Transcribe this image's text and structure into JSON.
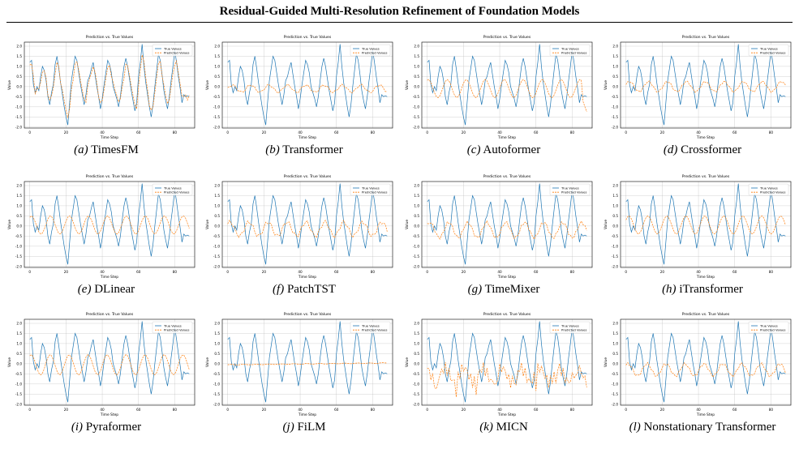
{
  "page": {
    "title": "Residual-Guided Multi-Resolution Refinement of Foundation Models"
  },
  "colors": {
    "true_series": "#1f77b4",
    "pred_series": "#ff7f0e",
    "grid": "#b0b0b0"
  },
  "chart_data": [
    {
      "type": "line",
      "label": "(a)",
      "model": "TimesFM",
      "title": "Prediction vs. True Values",
      "xlabel": "Time Step",
      "ylabel": "Value",
      "xlim": [
        -3,
        91
      ],
      "ylim": [
        -2.05,
        2.2
      ],
      "xticks": [
        0,
        20,
        40,
        60,
        80
      ],
      "yticks": [
        -2.0,
        -1.5,
        -1.0,
        -0.5,
        0.0,
        0.5,
        1.0,
        1.5,
        2.0
      ],
      "legend_position": "top-right",
      "grid": true,
      "series": [
        {
          "name": "True Values",
          "values": []
        },
        {
          "name": "Predicted Values",
          "values": []
        }
      ]
    },
    {
      "type": "line",
      "label": "(b)",
      "model": "Transformer",
      "title": "Prediction vs. True Values",
      "xlabel": "Time Step",
      "ylabel": "Value",
      "xlim": [
        -3,
        91
      ],
      "ylim": [
        -2.05,
        2.2
      ],
      "xticks": [
        0,
        20,
        40,
        60,
        80
      ],
      "yticks": [
        -2.0,
        -1.5,
        -1.0,
        -0.5,
        0.0,
        0.5,
        1.0,
        1.5,
        2.0
      ],
      "legend_position": "top-right",
      "grid": true,
      "series": [
        {
          "name": "True Values",
          "values": []
        },
        {
          "name": "Predicted Values",
          "values": []
        }
      ]
    },
    {
      "type": "line",
      "label": "(c)",
      "model": "Autoformer",
      "title": "Prediction vs. True Values",
      "xlabel": "Time Step",
      "ylabel": "Value",
      "xlim": [
        -3,
        91
      ],
      "ylim": [
        -2.05,
        2.2
      ],
      "xticks": [
        0,
        20,
        40,
        60,
        80
      ],
      "yticks": [
        -2.0,
        -1.5,
        -1.0,
        -0.5,
        0.0,
        0.5,
        1.0,
        1.5,
        2.0
      ],
      "legend_position": "top-right",
      "grid": true,
      "series": [
        {
          "name": "True Values",
          "values": []
        },
        {
          "name": "Predicted Values",
          "values": []
        }
      ]
    },
    {
      "type": "line",
      "label": "(d)",
      "model": "Crossformer",
      "title": "Prediction vs. True Values",
      "xlabel": "Time Step",
      "ylabel": "Value",
      "xlim": [
        -3,
        91
      ],
      "ylim": [
        -2.05,
        2.2
      ],
      "xticks": [
        0,
        20,
        40,
        60,
        80
      ],
      "yticks": [
        -2.0,
        -1.5,
        -1.0,
        -0.5,
        0.0,
        0.5,
        1.0,
        1.5,
        2.0
      ],
      "legend_position": "top-right",
      "grid": true,
      "series": [
        {
          "name": "True Values",
          "values": []
        },
        {
          "name": "Predicted Values",
          "values": []
        }
      ]
    },
    {
      "type": "line",
      "label": "(e)",
      "model": "DLinear",
      "title": "Prediction vs. True Values",
      "xlabel": "Time Step",
      "ylabel": "Value",
      "xlim": [
        -3,
        91
      ],
      "ylim": [
        -2.05,
        2.2
      ],
      "xticks": [
        0,
        20,
        40,
        60,
        80
      ],
      "yticks": [
        -2.0,
        -1.5,
        -1.0,
        -0.5,
        0.0,
        0.5,
        1.0,
        1.5,
        2.0
      ],
      "legend_position": "top-right",
      "grid": true,
      "series": [
        {
          "name": "True Values",
          "values": []
        },
        {
          "name": "Predicted Values",
          "values": []
        }
      ]
    },
    {
      "type": "line",
      "label": "(f)",
      "model": "PatchTST",
      "title": "Prediction vs. True Values",
      "xlabel": "Time Step",
      "ylabel": "Value",
      "xlim": [
        -3,
        91
      ],
      "ylim": [
        -2.05,
        2.2
      ],
      "xticks": [
        0,
        20,
        40,
        60,
        80
      ],
      "yticks": [
        -2.0,
        -1.5,
        -1.0,
        -0.5,
        0.0,
        0.5,
        1.0,
        1.5,
        2.0
      ],
      "legend_position": "top-right",
      "grid": true,
      "series": [
        {
          "name": "True Values",
          "values": []
        },
        {
          "name": "Predicted Values",
          "values": []
        }
      ]
    },
    {
      "type": "line",
      "label": "(g)",
      "model": "TimeMixer",
      "title": "Prediction vs. True Values",
      "xlabel": "Time Step",
      "ylabel": "Value",
      "xlim": [
        -3,
        91
      ],
      "ylim": [
        -2.05,
        2.2
      ],
      "xticks": [
        0,
        20,
        40,
        60,
        80
      ],
      "yticks": [
        -2.0,
        -1.5,
        -1.0,
        -0.5,
        0.0,
        0.5,
        1.0,
        1.5,
        2.0
      ],
      "legend_position": "top-right",
      "grid": true,
      "series": [
        {
          "name": "True Values",
          "values": []
        },
        {
          "name": "Predicted Values",
          "values": []
        }
      ]
    },
    {
      "type": "line",
      "label": "(h)",
      "model": "iTransformer",
      "title": "Prediction vs. True Values",
      "xlabel": "Time Step",
      "ylabel": "Value",
      "xlim": [
        -3,
        91
      ],
      "ylim": [
        -2.05,
        2.2
      ],
      "xticks": [
        0,
        20,
        40,
        60,
        80
      ],
      "yticks": [
        -2.0,
        -1.5,
        -1.0,
        -0.5,
        0.0,
        0.5,
        1.0,
        1.5,
        2.0
      ],
      "legend_position": "top-right",
      "grid": true,
      "series": [
        {
          "name": "True Values",
          "values": []
        },
        {
          "name": "Predicted Values",
          "values": []
        }
      ]
    },
    {
      "type": "line",
      "label": "(i)",
      "model": "Pyraformer",
      "title": "Prediction vs. True Values",
      "xlabel": "Time Step",
      "ylabel": "Value",
      "xlim": [
        -3,
        91
      ],
      "ylim": [
        -2.05,
        2.2
      ],
      "xticks": [
        0,
        20,
        40,
        60,
        80
      ],
      "yticks": [
        -2.0,
        -1.5,
        -1.0,
        -0.5,
        0.0,
        0.5,
        1.0,
        1.5,
        2.0
      ],
      "legend_position": "top-right",
      "grid": true,
      "series": [
        {
          "name": "True Values",
          "values": []
        },
        {
          "name": "Predicted Values",
          "values": []
        }
      ]
    },
    {
      "type": "line",
      "label": "(j)",
      "model": "FiLM",
      "title": "Prediction vs. True Values",
      "xlabel": "Time Step",
      "ylabel": "Value",
      "xlim": [
        -3,
        91
      ],
      "ylim": [
        -2.05,
        2.2
      ],
      "xticks": [
        0,
        20,
        40,
        60,
        80
      ],
      "yticks": [
        -2.0,
        -1.5,
        -1.0,
        -0.5,
        0.0,
        0.5,
        1.0,
        1.5,
        2.0
      ],
      "legend_position": "top-right",
      "grid": true,
      "series": [
        {
          "name": "True Values",
          "values": []
        },
        {
          "name": "Predicted Values",
          "values": []
        }
      ]
    },
    {
      "type": "line",
      "label": "(k)",
      "model": "MICN",
      "title": "Prediction vs. True Values",
      "xlabel": "Time Step",
      "ylabel": "Value",
      "xlim": [
        -3,
        91
      ],
      "ylim": [
        -2.05,
        2.2
      ],
      "xticks": [
        0,
        20,
        40,
        60,
        80
      ],
      "yticks": [
        -2.0,
        -1.5,
        -1.0,
        -0.5,
        0.0,
        0.5,
        1.0,
        1.5,
        2.0
      ],
      "legend_position": "top-right",
      "grid": true,
      "series": [
        {
          "name": "True Values",
          "values": []
        },
        {
          "name": "Predicted Values",
          "values": []
        }
      ]
    },
    {
      "type": "line",
      "label": "(l)",
      "model": "Nonstationary Transformer",
      "title": "Prediction vs. True Values",
      "xlabel": "Time Step",
      "ylabel": "Value",
      "xlim": [
        -3,
        91
      ],
      "ylim": [
        -2.05,
        2.2
      ],
      "xticks": [
        0,
        20,
        40,
        60,
        80
      ],
      "yticks": [
        -2.0,
        -1.5,
        -1.0,
        -0.5,
        0.0,
        0.5,
        1.0,
        1.5,
        2.0
      ],
      "legend_position": "top-right",
      "grid": true,
      "series": [
        {
          "name": "True Values",
          "values": []
        },
        {
          "name": "Predicted Values",
          "values": []
        }
      ]
    }
  ]
}
